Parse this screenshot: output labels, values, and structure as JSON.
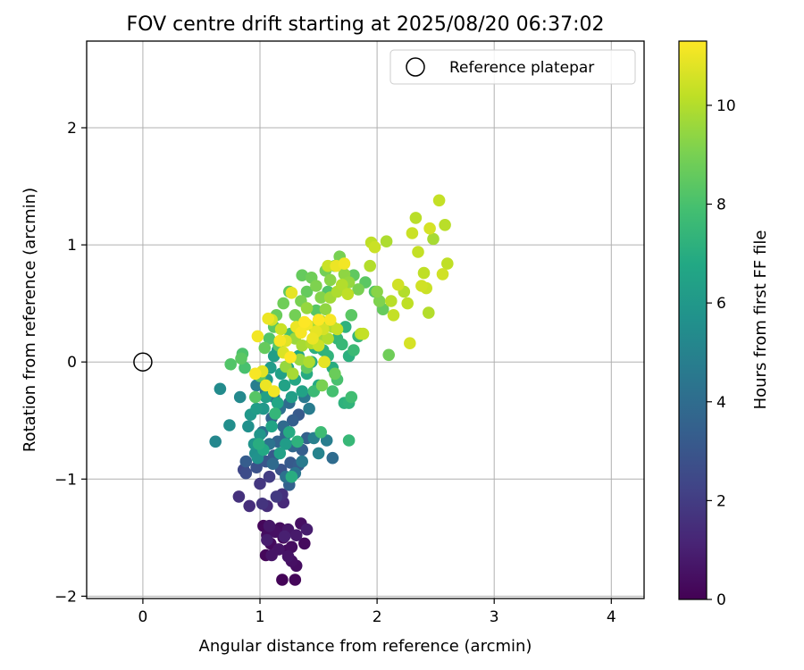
{
  "chart_data": {
    "type": "scatter",
    "title": "FOV centre drift starting at 2025/08/20 06:37:02",
    "xlabel": "Angular distance from reference (arcmin)",
    "ylabel": "Rotation from reference (arcmin)",
    "xlim": [
      -0.48,
      4.28
    ],
    "ylim": [
      -2.02,
      2.74
    ],
    "xticks": [
      0,
      1,
      2,
      3,
      4
    ],
    "yticks": [
      -2,
      -1,
      0,
      1,
      2
    ],
    "grid": true,
    "legend": {
      "placement": "top-right",
      "entries": [
        "Reference platepar"
      ]
    },
    "reference_point": {
      "x": 0,
      "y": 0,
      "label": "Reference platepar"
    },
    "colorbar": {
      "label": "Hours from first FF file",
      "range": [
        0,
        11.3
      ],
      "ticks": [
        0,
        2,
        4,
        6,
        8,
        10
      ],
      "colormap": "viridis"
    },
    "points": [
      [
        1.03,
        -1.4,
        0.2
      ],
      [
        1.06,
        -1.48,
        0.4
      ],
      [
        1.09,
        -1.55,
        0.3
      ],
      [
        1.13,
        -1.45,
        0.5
      ],
      [
        1.16,
        -1.6,
        0.6
      ],
      [
        1.2,
        -1.5,
        0.2
      ],
      [
        1.24,
        -1.43,
        0.7
      ],
      [
        1.27,
        -1.58,
        0.4
      ],
      [
        1.31,
        -1.48,
        0.8
      ],
      [
        1.35,
        -1.38,
        0.5
      ],
      [
        1.38,
        -1.55,
        0.3
      ],
      [
        1.4,
        -1.43,
        0.9
      ],
      [
        1.05,
        -1.65,
        0.2
      ],
      [
        1.1,
        -1.65,
        0.6
      ],
      [
        1.19,
        -1.86,
        0.1
      ],
      [
        1.23,
        -1.61,
        0.3
      ],
      [
        1.27,
        -1.7,
        0.5
      ],
      [
        1.31,
        -1.74,
        0.4
      ],
      [
        1.3,
        -1.86,
        0.2
      ],
      [
        1.08,
        -1.4,
        0.7
      ],
      [
        1.21,
        -1.49,
        1.0
      ],
      [
        1.17,
        -1.42,
        0.4
      ],
      [
        1.24,
        -1.66,
        0.6
      ],
      [
        1.06,
        -1.52,
        0.9
      ],
      [
        0.82,
        -1.15,
        1.6
      ],
      [
        0.91,
        -1.23,
        1.5
      ],
      [
        1.0,
        -1.04,
        1.8
      ],
      [
        1.02,
        -1.21,
        1.7
      ],
      [
        1.06,
        -1.23,
        1.4
      ],
      [
        1.14,
        -1.15,
        1.9
      ],
      [
        1.19,
        -1.13,
        1.6
      ],
      [
        1.2,
        -1.2,
        1.3
      ],
      [
        1.08,
        -0.98,
        2.0
      ],
      [
        0.86,
        -0.92,
        2.4
      ],
      [
        0.88,
        -0.95,
        2.6
      ],
      [
        0.97,
        -0.9,
        2.8
      ],
      [
        1.05,
        -0.85,
        3.0
      ],
      [
        1.12,
        -0.8,
        3.1
      ],
      [
        1.18,
        -0.92,
        2.9
      ],
      [
        1.26,
        -0.86,
        3.2
      ],
      [
        1.33,
        -0.88,
        3.3
      ],
      [
        1.36,
        -0.75,
        3.4
      ],
      [
        1.4,
        -0.65,
        3.5
      ],
      [
        1.15,
        -0.68,
        3.6
      ],
      [
        1.22,
        -0.62,
        3.7
      ],
      [
        1.28,
        -0.72,
        3.8
      ],
      [
        1.2,
        -0.55,
        3.9
      ],
      [
        1.1,
        -0.48,
        3.6
      ],
      [
        1.28,
        -0.5,
        3.4
      ],
      [
        1.33,
        -0.45,
        3.2
      ],
      [
        1.25,
        -0.35,
        4.0
      ],
      [
        1.17,
        -0.4,
        4.2
      ],
      [
        1.12,
        -0.3,
        4.4
      ],
      [
        1.05,
        -0.25,
        4.6
      ],
      [
        0.97,
        -0.2,
        4.8
      ],
      [
        1.02,
        -0.6,
        4.1
      ],
      [
        1.08,
        -0.7,
        4.3
      ],
      [
        1.38,
        -0.3,
        4.5
      ],
      [
        1.42,
        -0.4,
        4.7
      ],
      [
        1.46,
        -0.65,
        4.9
      ],
      [
        1.5,
        -0.78,
        5.0
      ],
      [
        1.36,
        -0.85,
        4.6
      ],
      [
        1.3,
        -0.95,
        4.4
      ],
      [
        1.22,
        -0.98,
        4.2
      ],
      [
        1.11,
        -0.87,
        3.9
      ],
      [
        1.25,
        -1.05,
        3.5
      ],
      [
        0.88,
        -0.85,
        3.3
      ],
      [
        1.62,
        -0.82,
        4.0
      ],
      [
        1.57,
        -0.67,
        4.8
      ],
      [
        0.62,
        -0.68,
        5.2
      ],
      [
        0.66,
        -0.23,
        5.4
      ],
      [
        0.74,
        -0.54,
        5.5
      ],
      [
        0.83,
        -0.3,
        5.3
      ],
      [
        0.9,
        -0.55,
        5.6
      ],
      [
        0.95,
        -0.7,
        5.8
      ],
      [
        0.98,
        -0.82,
        5.7
      ],
      [
        1.0,
        -0.62,
        5.9
      ],
      [
        1.03,
        -0.4,
        6.0
      ],
      [
        1.06,
        -0.15,
        6.1
      ],
      [
        1.09,
        -0.05,
        6.2
      ],
      [
        1.12,
        0.05,
        6.3
      ],
      [
        1.15,
        0.1,
        6.0
      ],
      [
        1.18,
        -0.1,
        6.4
      ],
      [
        1.21,
        -0.2,
        6.5
      ],
      [
        1.24,
        -0.05,
        6.6
      ],
      [
        1.27,
        -0.3,
        6.3
      ],
      [
        1.3,
        -0.15,
        6.7
      ],
      [
        1.33,
        0.05,
        6.8
      ],
      [
        1.36,
        -0.25,
        6.5
      ],
      [
        1.4,
        -0.1,
        6.9
      ],
      [
        1.44,
        0.0,
        7.0
      ],
      [
        1.47,
        0.12,
        7.1
      ],
      [
        1.5,
        -0.2,
        6.8
      ],
      [
        1.54,
        0.1,
        7.2
      ],
      [
        1.58,
        0.05,
        7.3
      ],
      [
        1.62,
        -0.05,
        7.0
      ],
      [
        1.66,
        0.2,
        7.4
      ],
      [
        1.7,
        0.15,
        7.5
      ],
      [
        1.73,
        0.3,
        7.2
      ],
      [
        1.76,
        0.05,
        7.1
      ],
      [
        1.8,
        0.1,
        7.6
      ],
      [
        1.84,
        0.22,
        7.4
      ],
      [
        1.22,
        -0.7,
        6.2
      ],
      [
        1.17,
        -0.78,
        6.4
      ],
      [
        1.1,
        -0.55,
        6.6
      ],
      [
        1.03,
        -0.75,
        6.8
      ],
      [
        0.99,
        -0.7,
        7.0
      ],
      [
        0.96,
        -0.78,
        5.6
      ],
      [
        0.92,
        -0.45,
        6.0
      ],
      [
        0.97,
        -0.4,
        6.2
      ],
      [
        1.05,
        -0.3,
        6.4
      ],
      [
        1.15,
        -0.35,
        6.7
      ],
      [
        1.25,
        -0.6,
        6.9
      ],
      [
        1.32,
        -0.68,
        7.2
      ],
      [
        1.27,
        -0.98,
        7.0
      ],
      [
        1.13,
        -0.44,
        7.4
      ],
      [
        1.76,
        -0.67,
        7.5
      ],
      [
        1.78,
        -0.3,
        7.8
      ],
      [
        1.76,
        -0.35,
        7.3
      ],
      [
        1.46,
        -0.25,
        7.6
      ],
      [
        1.52,
        -0.6,
        7.7
      ],
      [
        1.62,
        -0.25,
        7.9
      ],
      [
        1.66,
        -0.15,
        8.0
      ],
      [
        1.72,
        -0.35,
        7.2
      ],
      [
        0.75,
        -0.02,
        8.2
      ],
      [
        0.84,
        0.03,
        8.4
      ],
      [
        0.85,
        0.07,
        8.1
      ],
      [
        0.87,
        -0.05,
        8.0
      ],
      [
        0.96,
        -0.3,
        8.3
      ],
      [
        1.0,
        -0.12,
        8.5
      ],
      [
        1.04,
        0.12,
        8.6
      ],
      [
        1.08,
        0.2,
        8.2
      ],
      [
        1.12,
        0.3,
        8.4
      ],
      [
        1.14,
        0.4,
        8.7
      ],
      [
        1.2,
        0.5,
        8.8
      ],
      [
        1.25,
        0.6,
        8.5
      ],
      [
        1.3,
        0.4,
        8.9
      ],
      [
        1.35,
        0.52,
        9.0
      ],
      [
        1.4,
        0.6,
        8.6
      ],
      [
        1.44,
        0.72,
        8.8
      ],
      [
        1.48,
        0.65,
        9.1
      ],
      [
        1.52,
        0.55,
        9.2
      ],
      [
        1.56,
        0.78,
        8.9
      ],
      [
        1.6,
        0.7,
        9.3
      ],
      [
        1.64,
        0.82,
        8.7
      ],
      [
        1.68,
        0.9,
        9.0
      ],
      [
        1.72,
        0.75,
        9.4
      ],
      [
        1.76,
        0.68,
        9.5
      ],
      [
        1.8,
        0.74,
        8.5
      ],
      [
        1.84,
        0.62,
        9.0
      ],
      [
        1.9,
        0.68,
        8.4
      ],
      [
        1.98,
        0.6,
        8.2
      ],
      [
        2.05,
        0.45,
        8.6
      ],
      [
        2.1,
        0.06,
        8.8
      ],
      [
        1.16,
        0.14,
        8.3
      ],
      [
        1.26,
        0.24,
        8.0
      ],
      [
        1.34,
        0.32,
        8.6
      ],
      [
        1.4,
        -0.05,
        8.5
      ],
      [
        1.53,
        -0.2,
        9.0
      ],
      [
        1.64,
        -0.1,
        8.7
      ],
      [
        1.78,
        0.4,
        8.4
      ],
      [
        1.36,
        0.74,
        8.6
      ],
      [
        1.48,
        0.44,
        8.3
      ],
      [
        1.58,
        0.6,
        8.2
      ],
      [
        1.4,
        0.46,
        9.5
      ],
      [
        1.46,
        0.3,
        9.6
      ],
      [
        1.52,
        0.35,
        9.8
      ],
      [
        1.56,
        0.45,
        9.4
      ],
      [
        1.6,
        0.55,
        9.7
      ],
      [
        1.66,
        0.6,
        9.9
      ],
      [
        1.7,
        0.66,
        10.0
      ],
      [
        1.75,
        0.58,
        10.2
      ],
      [
        1.86,
        0.24,
        10.1
      ],
      [
        1.88,
        0.24,
        10.3
      ],
      [
        1.94,
        0.82,
        10.0
      ],
      [
        1.95,
        1.02,
        10.2
      ],
      [
        1.98,
        0.98,
        10.4
      ],
      [
        2.08,
        1.03,
        9.9
      ],
      [
        2.12,
        0.52,
        10.1
      ],
      [
        2.14,
        0.4,
        10.3
      ],
      [
        2.18,
        0.66,
        10.5
      ],
      [
        2.23,
        0.6,
        10.0
      ],
      [
        2.26,
        0.5,
        10.2
      ],
      [
        2.28,
        0.16,
        10.6
      ],
      [
        2.3,
        1.1,
        10.4
      ],
      [
        2.33,
        1.23,
        10.1
      ],
      [
        2.35,
        0.94,
        10.3
      ],
      [
        2.38,
        0.65,
        10.5
      ],
      [
        2.4,
        0.76,
        10.2
      ],
      [
        2.42,
        0.63,
        10.4
      ],
      [
        2.44,
        0.42,
        10.0
      ],
      [
        2.45,
        1.14,
        10.6
      ],
      [
        2.48,
        1.05,
        9.8
      ],
      [
        2.53,
        1.38,
        10.3
      ],
      [
        2.56,
        0.75,
        10.5
      ],
      [
        2.58,
        1.17,
        10.1
      ],
      [
        2.6,
        0.84,
        10.2
      ],
      [
        1.3,
        0.2,
        9.6
      ],
      [
        1.36,
        0.14,
        9.8
      ],
      [
        1.44,
        0.16,
        10.0
      ],
      [
        1.5,
        0.22,
        9.7
      ],
      [
        1.55,
        0.0,
        10.2
      ],
      [
        1.62,
        0.3,
        9.9
      ],
      [
        1.22,
        -0.04,
        9.5
      ],
      [
        1.28,
        -0.1,
        9.8
      ],
      [
        1.34,
        0.02,
        9.6
      ],
      [
        1.42,
        0.0,
        9.9
      ],
      [
        1.5,
        0.14,
        10.4
      ],
      [
        1.58,
        0.2,
        10.0
      ],
      [
        1.66,
        0.28,
        10.3
      ],
      [
        1.1,
        0.36,
        10.6
      ],
      [
        1.18,
        0.28,
        10.4
      ],
      [
        1.22,
        0.18,
        10.8
      ],
      [
        1.27,
        0.59,
        10.9
      ],
      [
        1.31,
        0.3,
        11.0
      ],
      [
        1.35,
        0.25,
        11.2
      ],
      [
        1.4,
        0.32,
        11.1
      ],
      [
        1.45,
        0.2,
        11.0
      ],
      [
        1.5,
        0.36,
        11.3
      ],
      [
        1.55,
        0.0,
        10.9
      ],
      [
        1.6,
        0.36,
        11.2
      ],
      [
        1.65,
        0.82,
        11.0
      ],
      [
        1.72,
        0.84,
        11.1
      ],
      [
        1.07,
        0.37,
        11.0
      ],
      [
        0.98,
        0.22,
        11.1
      ],
      [
        1.17,
        0.18,
        11.2
      ],
      [
        1.05,
        -0.2,
        11.0
      ],
      [
        1.26,
        0.04,
        11.3
      ],
      [
        0.96,
        -0.1,
        11.2
      ],
      [
        1.2,
        0.08,
        10.7
      ],
      [
        1.48,
        0.26,
        10.9
      ],
      [
        1.38,
        0.34,
        11.3
      ],
      [
        1.02,
        -0.08,
        10.8
      ],
      [
        1.12,
        -0.25,
        11.1
      ],
      [
        1.54,
        0.28,
        10.6
      ],
      [
        1.58,
        0.82,
        10.4
      ],
      [
        1.88,
        0.24,
        9.7
      ],
      [
        2.0,
        0.6,
        9.3
      ],
      [
        2.02,
        0.52,
        9.1
      ]
    ]
  }
}
